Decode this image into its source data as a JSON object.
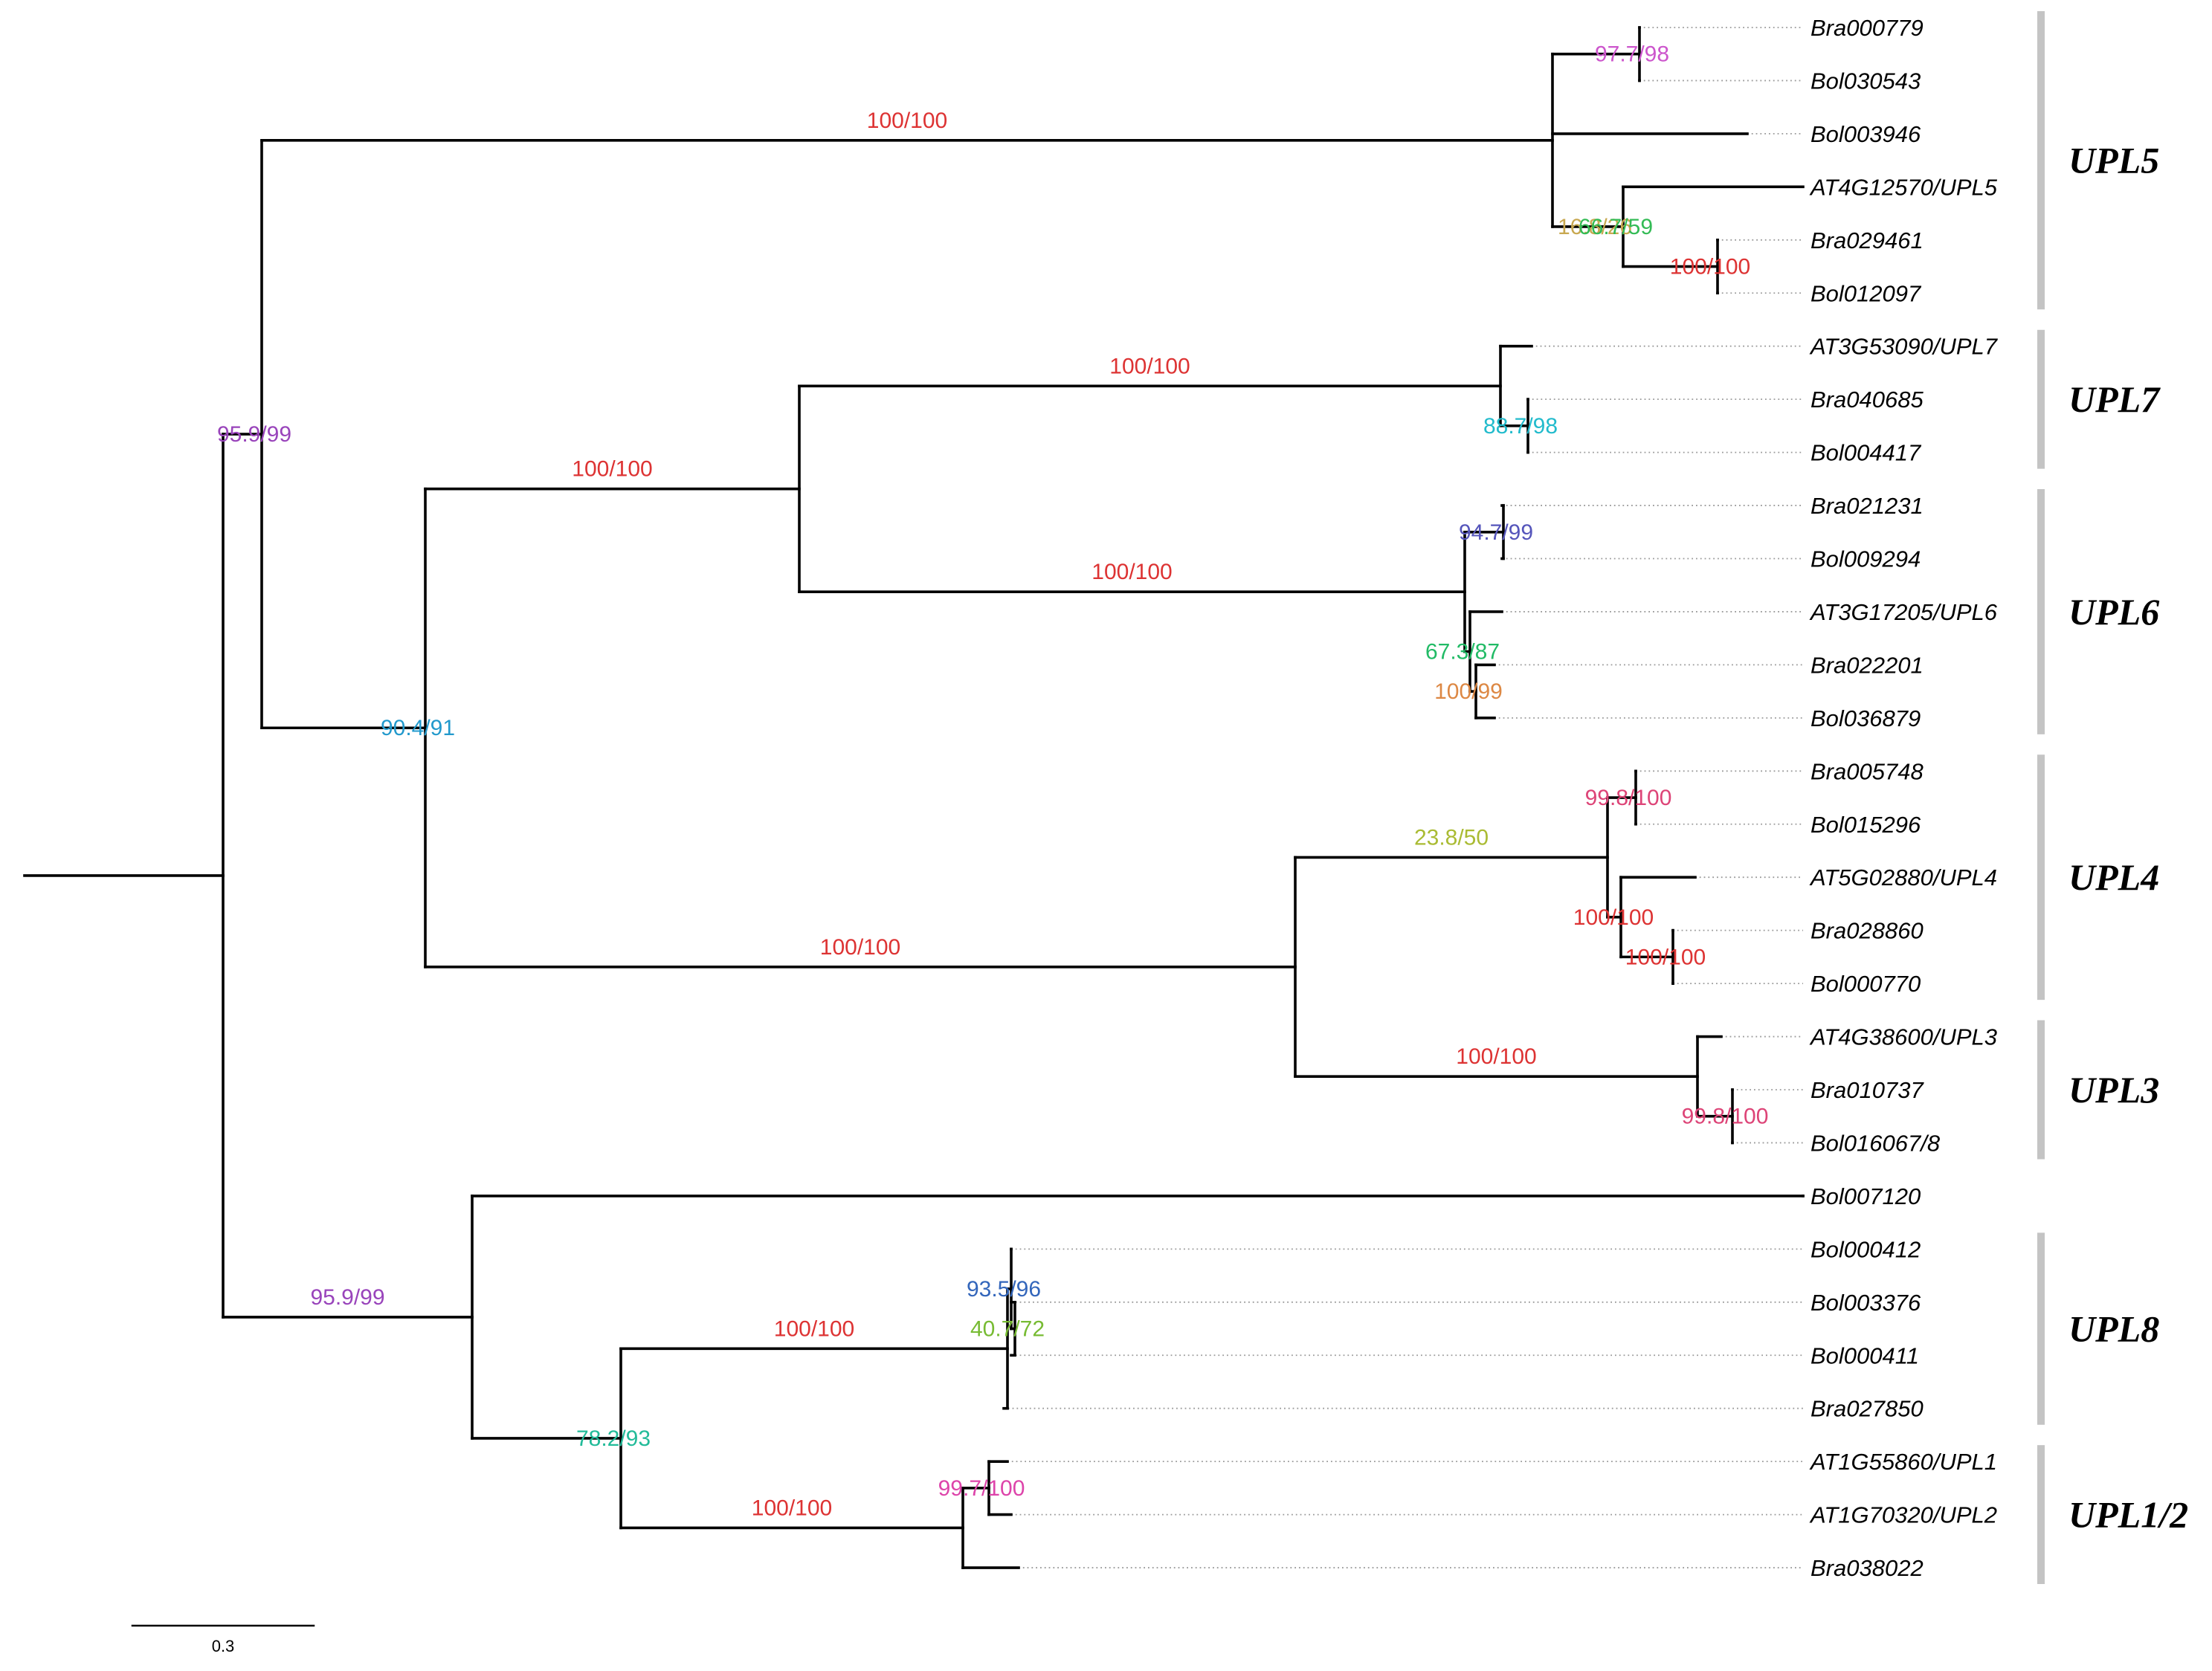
{
  "tree": {
    "leaves": [
      "Bra000779",
      "Bol030543",
      "Bol003946",
      "AT4G12570/UPL5",
      "Bra029461",
      "Bol012097",
      "AT3G53090/UPL7",
      "Bra040685",
      "Bol004417",
      "Bra021231",
      "Bol009294",
      "AT3G17205/UPL6",
      "Bra022201",
      "Bol036879",
      "Bra005748",
      "Bol015296",
      "AT5G02880/UPL4",
      "Bra028860",
      "Bol000770",
      "AT4G38600/UPL3",
      "Bra010737",
      "Bol016067/8",
      "Bol007120",
      "Bol000412",
      "Bol003376",
      "Bol000411",
      "Bra027850",
      "AT1G55860/UPL1",
      "AT1G70320/UPL2",
      "Bra038022"
    ],
    "support_values": [
      {
        "text": "97.7/98",
        "color": "#cc55cc"
      },
      {
        "text": "100/100",
        "color": "#dd3333"
      },
      {
        "text": "16.8/26",
        "color": "#c8a850"
      },
      {
        "text": "66.7/59",
        "color": "#33bb55"
      },
      {
        "text": "100/100",
        "color": "#dd3333"
      },
      {
        "text": "95.9/99",
        "color": "#9944bb"
      },
      {
        "text": "100/100",
        "color": "#dd3333"
      },
      {
        "text": "88.7/98",
        "color": "#22bbcc"
      },
      {
        "text": "100/100",
        "color": "#dd3333"
      },
      {
        "text": "94.7/99",
        "color": "#5555bb"
      },
      {
        "text": "100/100",
        "color": "#dd3333"
      },
      {
        "text": "67.3/87",
        "color": "#22bb66"
      },
      {
        "text": "100/99",
        "color": "#dd8844"
      },
      {
        "text": "90.4/91",
        "color": "#2299cc"
      },
      {
        "text": "99.8/100",
        "color": "#dd4477"
      },
      {
        "text": "100/100",
        "color": "#dd3333"
      },
      {
        "text": "23.8/50",
        "color": "#aabb33"
      },
      {
        "text": "100/100",
        "color": "#dd3333"
      },
      {
        "text": "100/100",
        "color": "#dd3333"
      },
      {
        "text": "100/100",
        "color": "#dd3333"
      },
      {
        "text": "99.8/100",
        "color": "#dd4477"
      },
      {
        "text": "95.9/99",
        "color": "#9944bb"
      },
      {
        "text": "40.7/72",
        "color": "#77bb33"
      },
      {
        "text": "93.5/96",
        "color": "#3366bb"
      },
      {
        "text": "100/100",
        "color": "#dd3333"
      },
      {
        "text": "78.2/93",
        "color": "#22bb99"
      },
      {
        "text": "99.7/100",
        "color": "#dd44aa"
      },
      {
        "text": "100/100",
        "color": "#dd3333"
      }
    ],
    "clades": [
      {
        "label": "UPL5",
        "first_leaf": 0,
        "last_leaf": 5
      },
      {
        "label": "UPL7",
        "first_leaf": 6,
        "last_leaf": 8
      },
      {
        "label": "UPL6",
        "first_leaf": 9,
        "last_leaf": 13
      },
      {
        "label": "UPL4",
        "first_leaf": 14,
        "last_leaf": 18
      },
      {
        "label": "UPL3",
        "first_leaf": 19,
        "last_leaf": 21
      },
      {
        "label": "UPL8",
        "first_leaf": 23,
        "last_leaf": 26
      },
      {
        "label": "UPL1/2",
        "first_leaf": 27,
        "last_leaf": 29
      }
    ],
    "scale_bar": {
      "label": "0.3"
    }
  }
}
